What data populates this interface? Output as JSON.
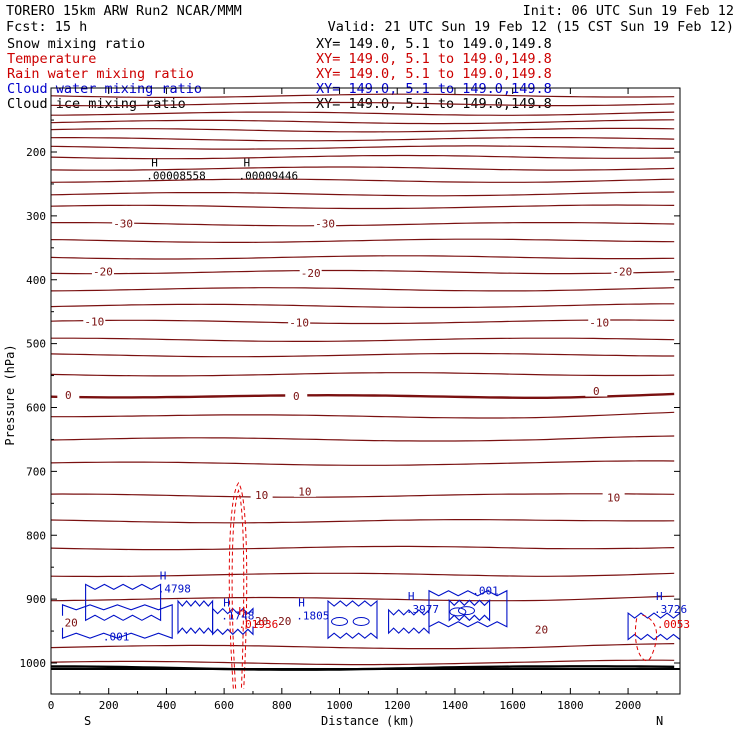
{
  "header": {
    "line1_left": "TORERO  15km ARW   Run2    NCAR/MMM",
    "line1_right": "Init: 06 UTC Sun 19 Feb 12",
    "line2_left": "Fcst:   15 h",
    "line2_right": "Valid: 21 UTC Sun 19 Feb 12 (15 CST Sun 19 Feb 12)"
  },
  "legend": [
    {
      "name": "Snow mixing ratio",
      "xy": "XY= 149.0,  5.1 to 149.0,149.8",
      "color": "#000000"
    },
    {
      "name": "Temperature",
      "xy": "XY= 149.0,  5.1 to 149.0,149.8",
      "color": "#cc0000"
    },
    {
      "name": "Rain water mixing ratio",
      "xy": "XY= 149.0,  5.1 to 149.0,149.8",
      "color": "#cc0000"
    },
    {
      "name": "Cloud water mixing ratio",
      "xy": "XY= 149.0,  5.1 to 149.0,149.8",
      "color": "#0000cc"
    },
    {
      "name": "Cloud ice mixing ratio",
      "xy": "XY= 149.0,  5.1 to 149.0,149.8",
      "color": "#000000"
    }
  ],
  "chart_data": {
    "type": "cross-section contour",
    "xlabel": "Distance (km)",
    "ylabel": "Pressure (hPa)",
    "xlim": [
      0,
      2180
    ],
    "ylim": [
      1050,
      100
    ],
    "x_ticks": [
      0,
      200,
      400,
      600,
      800,
      1000,
      1200,
      1400,
      1600,
      1800,
      2000
    ],
    "y_ticks": [
      200,
      300,
      400,
      500,
      600,
      700,
      800,
      900,
      1000
    ],
    "endpoint_left": "S",
    "endpoint_right": "N",
    "temperature_isotherms": [
      {
        "label": "-30",
        "label_points": [
          [
            250,
            313
          ],
          [
            950,
            313
          ]
        ]
      },
      {
        "label": "-20",
        "label_points": [
          [
            180,
            388
          ],
          [
            900,
            390
          ],
          [
            1980,
            388
          ]
        ]
      },
      {
        "label": "-10",
        "label_points": [
          [
            150,
            466
          ],
          [
            860,
            468
          ],
          [
            1900,
            468
          ]
        ]
      },
      {
        "label": "0",
        "label_points": [
          [
            60,
            581
          ],
          [
            850,
            583
          ],
          [
            1890,
            575
          ]
        ],
        "bold": true
      },
      {
        "label": "10",
        "label_points": [
          [
            730,
            738
          ],
          [
            880,
            732
          ],
          [
            1950,
            742
          ]
        ]
      },
      {
        "label": "20",
        "label_points": [
          [
            70,
            937
          ],
          [
            730,
            935
          ],
          [
            810,
            935
          ],
          [
            1700,
            948
          ]
        ]
      }
    ],
    "temperature_levels_hpa": [
      112,
      125,
      140,
      153,
      166,
      180,
      193,
      208,
      226,
      245,
      266,
      286,
      313,
      339,
      365,
      388,
      415,
      441,
      466,
      494,
      518,
      548,
      581,
      612,
      650,
      688,
      738,
      778,
      820,
      862,
      900,
      975,
      1000,
      1008
    ],
    "rain_water_maxima": [
      {
        "x": 650,
        "p": 945,
        "label": "H",
        "value": ".01936"
      },
      {
        "x": 2100,
        "p": 945,
        "label": "",
        "value": ".0053"
      }
    ],
    "cloud_water_maxima": [
      {
        "x": 370,
        "p": 890,
        "label": "H",
        "value": ".4798"
      },
      {
        "x": 590,
        "p": 932,
        "label": "H",
        "value": ".1748"
      },
      {
        "x": 850,
        "p": 932,
        "label": "H",
        "value": ".1805"
      },
      {
        "x": 1230,
        "p": 922,
        "label": "H",
        "value": ".3977"
      },
      {
        "x": 2090,
        "p": 922,
        "label": "H",
        "value": ".3726"
      },
      {
        "x": 180,
        "p": 965,
        "label": "",
        "value": ".001"
      },
      {
        "x": 1460,
        "p": 893,
        "label": "",
        "value": ".001"
      }
    ],
    "snow_maxima": [
      {
        "x": 330,
        "p": 243,
        "label": "H",
        "value": ".00008558"
      },
      {
        "x": 650,
        "p": 243,
        "label": "H",
        "value": ".00009446"
      }
    ]
  }
}
